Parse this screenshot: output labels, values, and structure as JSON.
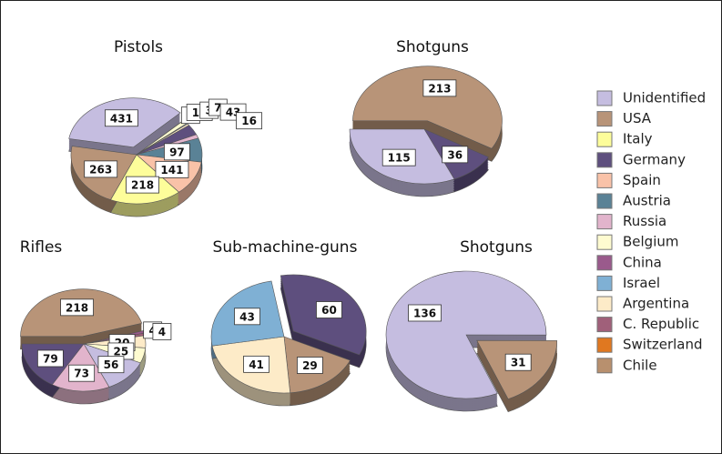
{
  "legend": [
    {
      "name": "Unidentified",
      "color": "#c5bde0"
    },
    {
      "name": "USA",
      "color": "#b89478"
    },
    {
      "name": "Italy",
      "color": "#fdfd9a"
    },
    {
      "name": "Germany",
      "color": "#5e4f7e"
    },
    {
      "name": "Spain",
      "color": "#f9c2a8"
    },
    {
      "name": "Austria",
      "color": "#5a8296"
    },
    {
      "name": "Russia",
      "color": "#e2b4cc"
    },
    {
      "name": "Belgium",
      "color": "#fefbd0"
    },
    {
      "name": "China",
      "color": "#9a5a8c"
    },
    {
      "name": "Israel",
      "color": "#7fb0d4"
    },
    {
      "name": "Argentina",
      "color": "#fdebc8"
    },
    {
      "name": "C. Republic",
      "color": "#a0607a"
    },
    {
      "name": "Switzerland",
      "color": "#e07820"
    },
    {
      "name": "Chile",
      "color": "#b8906e"
    }
  ],
  "chart_data": [
    {
      "type": "pie",
      "title": "Pistols",
      "categories": [
        "Unidentified",
        "China",
        "Belgium",
        "Israel",
        "Argentina",
        "Germany",
        "Russia",
        "Austria",
        "Spain",
        "Italy",
        "USA"
      ],
      "values": [
        431,
        1,
        15,
        3,
        7,
        43,
        16,
        97,
        141,
        218,
        263
      ],
      "exploded": [
        0
      ]
    },
    {
      "type": "pie",
      "title": "Shotguns",
      "categories": [
        "USA",
        "Germany",
        "Unidentified"
      ],
      "values": [
        213,
        36,
        115
      ],
      "exploded": [
        0
      ]
    },
    {
      "type": "pie",
      "title": "Rifles",
      "categories": [
        "USA",
        "China",
        "C. Republic",
        "Argentina",
        "Belgium",
        "Unidentified",
        "Russia",
        "Germany"
      ],
      "values": [
        218,
        4,
        4,
        20,
        25,
        56,
        73,
        79
      ],
      "exploded": [
        0
      ]
    },
    {
      "type": "pie",
      "title": "Sub-machine-guns",
      "categories": [
        "Germany",
        "USA",
        "Argentina",
        "Israel"
      ],
      "values": [
        60,
        29,
        41,
        43
      ],
      "exploded": [
        0
      ]
    },
    {
      "type": "pie",
      "title": "Shotguns",
      "categories": [
        "Unidentified",
        "USA"
      ],
      "values": [
        136,
        31
      ],
      "exploded": [
        1
      ]
    }
  ]
}
